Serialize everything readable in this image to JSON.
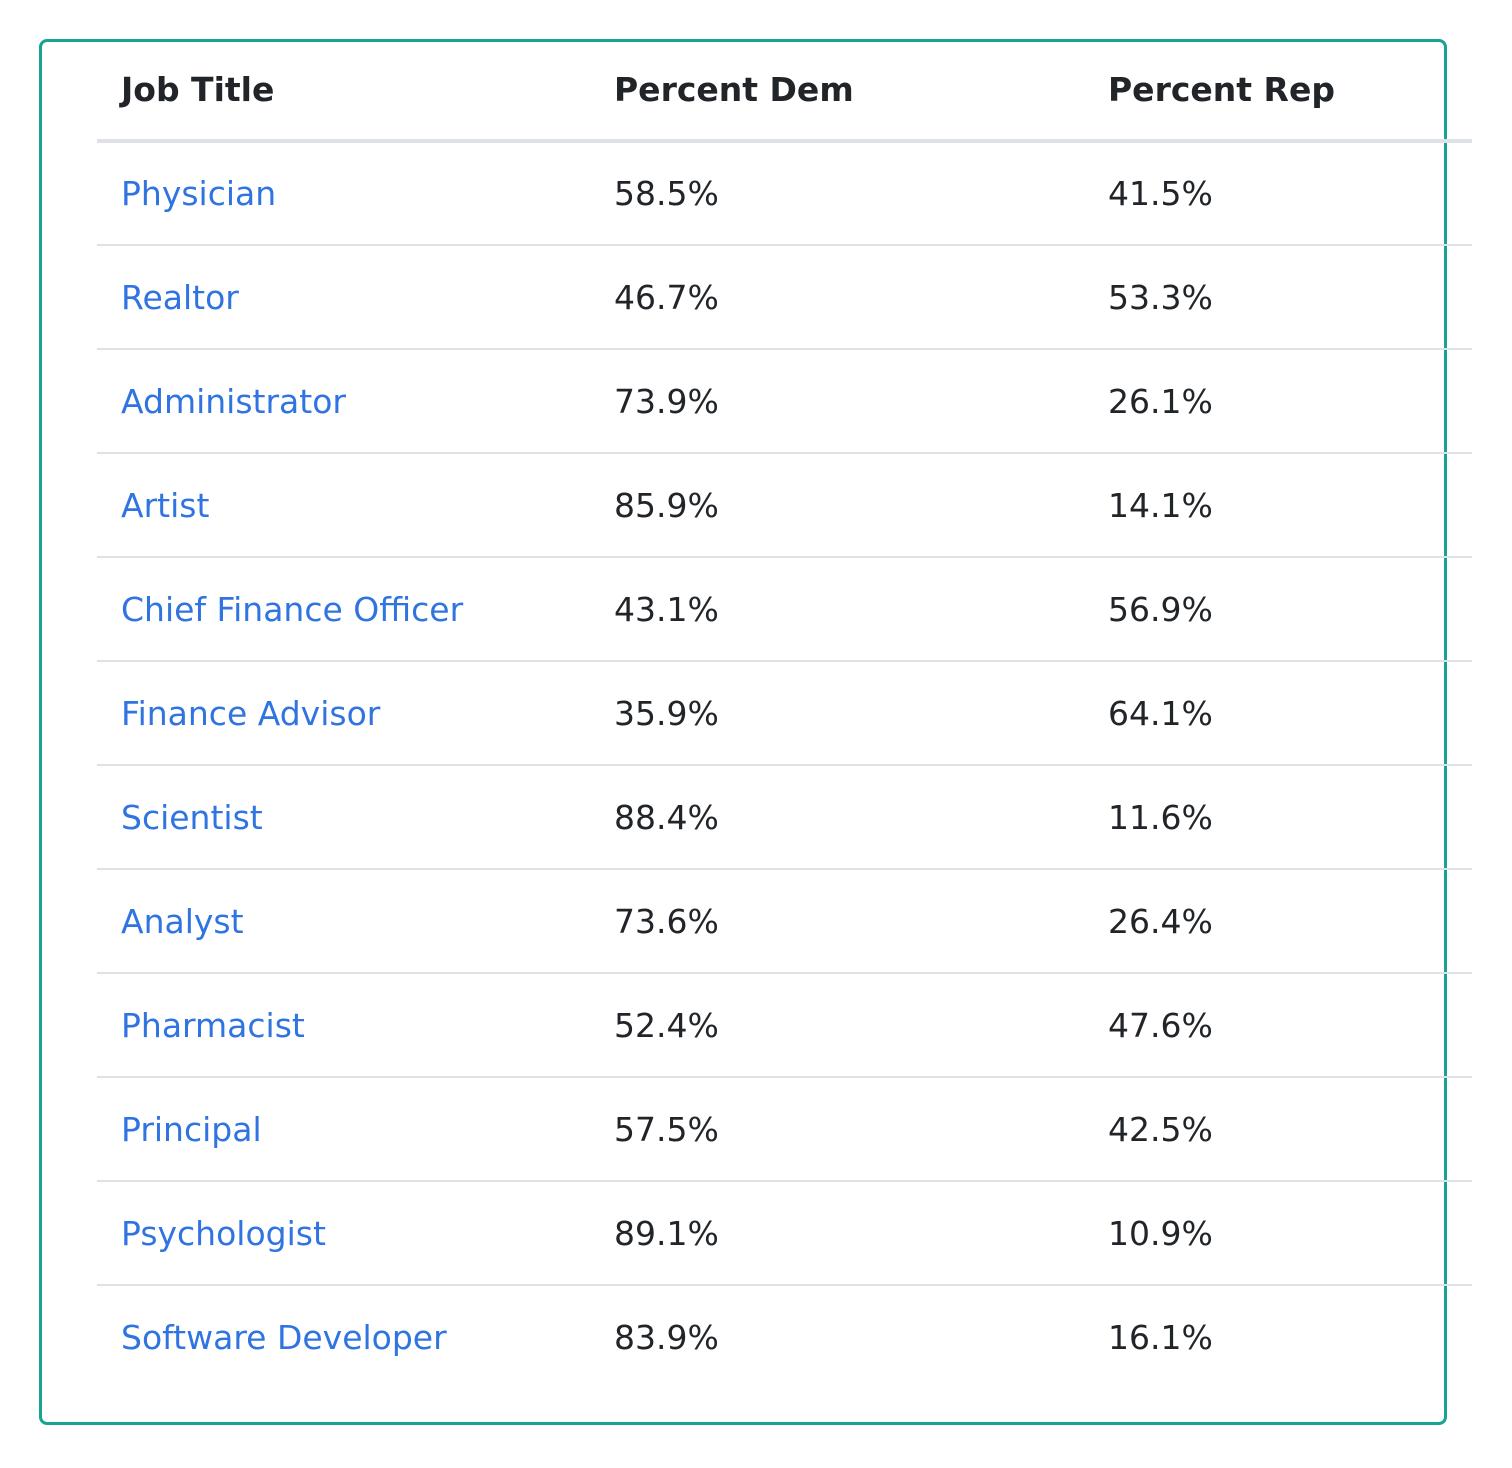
{
  "table": {
    "headers": {
      "job_title": "Job Title",
      "percent_dem": "Percent Dem",
      "percent_rep": "Percent Rep"
    },
    "rows": [
      {
        "job": "Physician",
        "dem": "58.5%",
        "rep": "41.5%"
      },
      {
        "job": "Realtor",
        "dem": "46.7%",
        "rep": "53.3%"
      },
      {
        "job": "Administrator",
        "dem": "73.9%",
        "rep": "26.1%"
      },
      {
        "job": "Artist",
        "dem": "85.9%",
        "rep": "14.1%"
      },
      {
        "job": "Chief Finance Officer",
        "dem": "43.1%",
        "rep": "56.9%"
      },
      {
        "job": "Finance Advisor",
        "dem": "35.9%",
        "rep": "64.1%"
      },
      {
        "job": "Scientist",
        "dem": "88.4%",
        "rep": "11.6%"
      },
      {
        "job": "Analyst",
        "dem": "73.6%",
        "rep": "26.4%"
      },
      {
        "job": "Pharmacist",
        "dem": "52.4%",
        "rep": "47.6%"
      },
      {
        "job": "Principal",
        "dem": "57.5%",
        "rep": "42.5%"
      },
      {
        "job": "Psychologist",
        "dem": "89.1%",
        "rep": "10.9%"
      },
      {
        "job": "Software Developer",
        "dem": "83.9%",
        "rep": "16.1%"
      }
    ]
  },
  "colors": {
    "border_accent": "#16a394",
    "link": "#2f74e0",
    "text": "#212529",
    "divider": "#dee2e6"
  }
}
